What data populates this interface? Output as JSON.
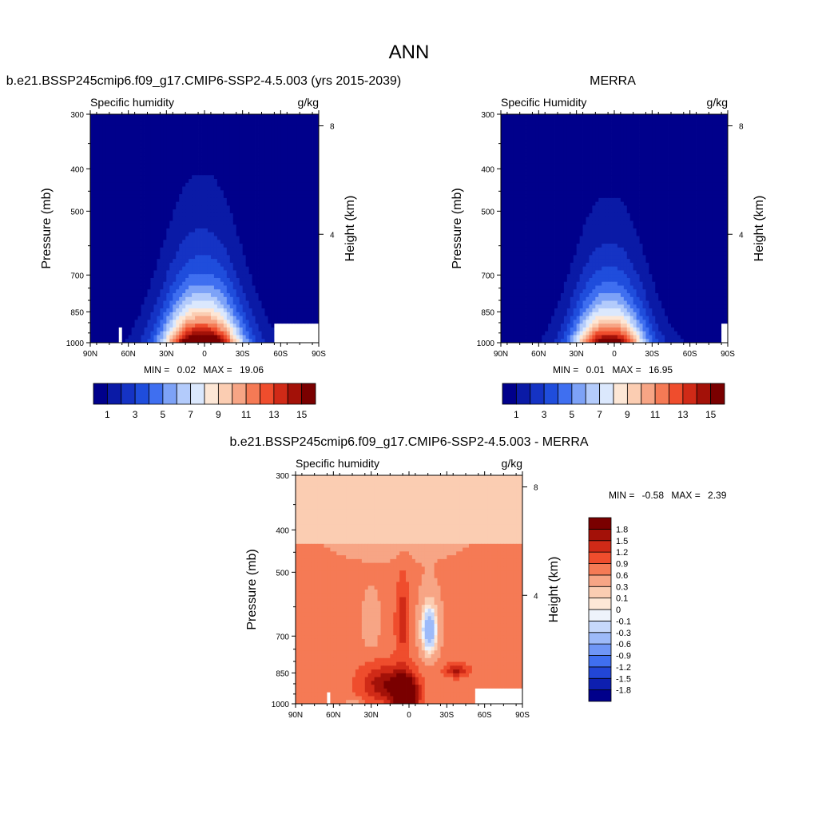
{
  "page_title": "ANN",
  "palettes": {
    "humidity": [
      "#00008b",
      "#0a1aa6",
      "#1533c4",
      "#1f4ddc",
      "#3f6ff0",
      "#7da2f7",
      "#b3cbfb",
      "#dbe8fd",
      "#fde7d6",
      "#fbcdb2",
      "#f7a585",
      "#f57a55",
      "#ef4d2d",
      "#d02a17",
      "#a31108",
      "#7a0000"
    ],
    "difference": [
      "#00008b",
      "#0d1fb0",
      "#2246d6",
      "#3f6ff0",
      "#6f96f6",
      "#9dbaf9",
      "#c6d8fb",
      "#eef3fb",
      "#fde7d6",
      "#fbcdb2",
      "#f7a585",
      "#f57a55",
      "#ef4d2d",
      "#d02a17",
      "#a31108",
      "#7a0000"
    ]
  },
  "chart_data": [
    {
      "type": "heatmap",
      "title": "b.e21.BSSP245cmip6.f09_g17.CMIP6-SSP2-4.5.003 (yrs 2015-2039)",
      "left_string": "Specific humidity",
      "right_string": "g/kg",
      "ylabel": "Pressure (mb)",
      "ylabel_right": "Height (km)",
      "x_ticks": [
        "90N",
        "60N",
        "30N",
        "0",
        "30S",
        "60S",
        "90S"
      ],
      "x_range": [
        90,
        -90
      ],
      "y_ticks": [
        300,
        400,
        500,
        700,
        850,
        1000
      ],
      "y_range": [
        1000,
        300
      ],
      "height_ticks": [
        8,
        4
      ],
      "stats": {
        "min_label": "MIN =",
        "min": "0.02",
        "max_label": "MAX =",
        "max": "19.06"
      },
      "colorbar_labels": [
        "1",
        "3",
        "5",
        "7",
        "9",
        "11",
        "13",
        "15"
      ],
      "field": {
        "peak": 18.5,
        "center_lat": 2,
        "center_width": 26,
        "plateau_width": 40,
        "scale_height_p": 200,
        "surface_cutoffs": {
          "north": 65,
          "south": -54
        }
      }
    },
    {
      "type": "heatmap",
      "title": "MERRA",
      "left_string": "Specific Humidity",
      "right_string": "g/kg",
      "ylabel": "Pressure (mb)",
      "ylabel_right": "Height (km)",
      "x_ticks": [
        "90N",
        "60N",
        "30N",
        "0",
        "30S",
        "60S",
        "90S"
      ],
      "x_range": [
        90,
        -90
      ],
      "y_ticks": [
        300,
        400,
        500,
        700,
        850,
        1000
      ],
      "y_range": [
        1000,
        300
      ],
      "height_ticks": [
        8,
        4
      ],
      "stats": {
        "min_label": "MIN =",
        "min": "0.01",
        "max_label": "MAX =",
        "max": "16.95"
      },
      "colorbar_labels": [
        "1",
        "3",
        "5",
        "7",
        "9",
        "11",
        "13",
        "15"
      ],
      "field": {
        "peak": 16.5,
        "center_lat": 4,
        "center_width": 24,
        "plateau_width": 36,
        "scale_height_p": 190,
        "surface_cutoffs": {
          "north": 90,
          "south": -85
        }
      }
    },
    {
      "type": "heatmap",
      "title": "b.e21.BSSP245cmip6.f09_g17.CMIP6-SSP2-4.5.003 - MERRA",
      "left_string": "Specific humidity",
      "right_string": "g/kg",
      "ylabel": "Pressure (mb)",
      "ylabel_right": "Height (km)",
      "x_ticks": [
        "90N",
        "60N",
        "30N",
        "0",
        "30S",
        "60S",
        "90S"
      ],
      "x_range": [
        90,
        -90
      ],
      "y_ticks": [
        300,
        400,
        500,
        700,
        850,
        1000
      ],
      "y_range": [
        1000,
        300
      ],
      "height_ticks": [
        8,
        4
      ],
      "stats": {
        "min_label": "MIN =",
        "min": "-0.58",
        "max_label": "MAX =",
        "max": "2.39"
      },
      "colorbar_labels": [
        "1.8",
        "1.5",
        "1.2",
        "0.9",
        "0.6",
        "0.3",
        "0.1",
        "0",
        "-0.1",
        "-0.3",
        "-0.6",
        "-0.9",
        "-1.2",
        "-1.5",
        "-1.8"
      ],
      "field": {
        "max": 2.39,
        "min": -0.58
      }
    }
  ]
}
